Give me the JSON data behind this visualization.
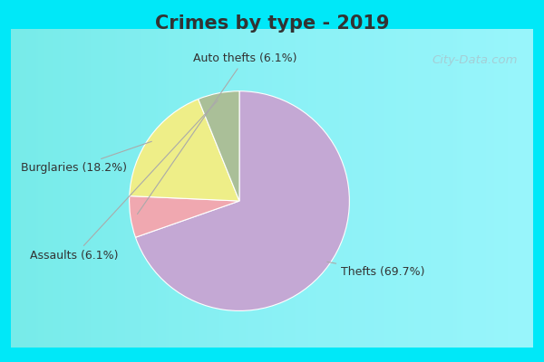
{
  "title": "Crimes by type - 2019",
  "title_color": "#333333",
  "title_fontsize": 15,
  "labels": [
    "Thefts",
    "Burglaries",
    "Assaults",
    "Auto thefts"
  ],
  "values": [
    69.7,
    18.2,
    6.1,
    6.1
  ],
  "colors": [
    "#c4a8d4",
    "#eeee88",
    "#aabf98",
    "#f0a8b0"
  ],
  "border_color": "#00e8f8",
  "border_width": 8,
  "bg_color_inner": "#e8f5ec",
  "watermark": "City-Data.com",
  "watermark_color": "#a8c8d0",
  "label_fontsize": 9,
  "label_color": "#333333"
}
